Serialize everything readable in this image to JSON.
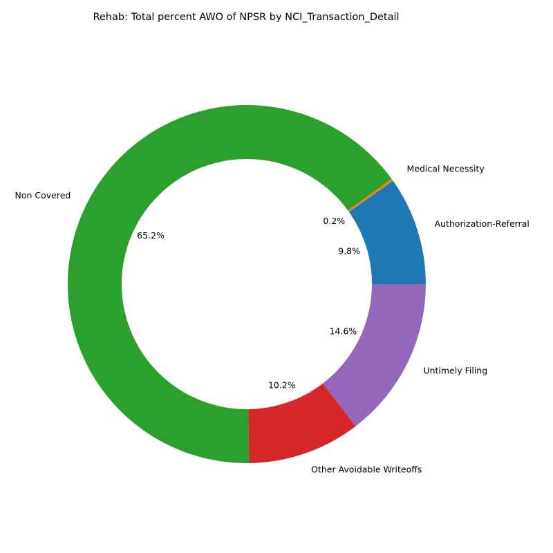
{
  "chart_data": {
    "type": "pie",
    "donut": true,
    "title": "Rehab: Total percent AWO of NPSR by NCI_Transaction_Detail",
    "start_angle_deg": 0,
    "direction": "counterclockwise",
    "slices": [
      {
        "label": "Authorization-Referral",
        "value": 9.8,
        "pct_label": "9.8%",
        "color": "#1f77b4"
      },
      {
        "label": "Medical Necessity",
        "value": 0.2,
        "pct_label": "0.2%",
        "color": "#ff7f0e"
      },
      {
        "label": "Non Covered",
        "value": 65.2,
        "pct_label": "65.2%",
        "color": "#2ca02c"
      },
      {
        "label": "Other Avoidable Writeoffs",
        "value": 10.2,
        "pct_label": "10.2%",
        "color": "#d62728"
      },
      {
        "label": "Untimely Filing",
        "value": 14.6,
        "pct_label": "14.6%",
        "color": "#9467bd"
      }
    ]
  }
}
